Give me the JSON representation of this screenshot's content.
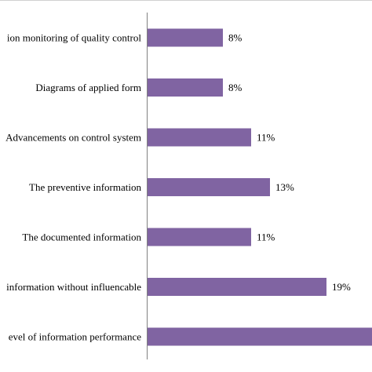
{
  "chart_data": {
    "type": "bar",
    "orientation": "horizontal",
    "categories": [
      "ion monitoring of quality control",
      "Diagrams of applied form",
      "Advancements on control system",
      "The preventive information",
      "The documented information",
      "information without influencable",
      "evel of information performance"
    ],
    "values": [
      8,
      8,
      11,
      13,
      11,
      19,
      30
    ],
    "value_labels": [
      "8%",
      "8%",
      "11%",
      "13%",
      "11%",
      "19%",
      ""
    ],
    "xlim": [
      0,
      30
    ],
    "bar_color": "#8064a2",
    "grid": false,
    "legend": "none"
  }
}
